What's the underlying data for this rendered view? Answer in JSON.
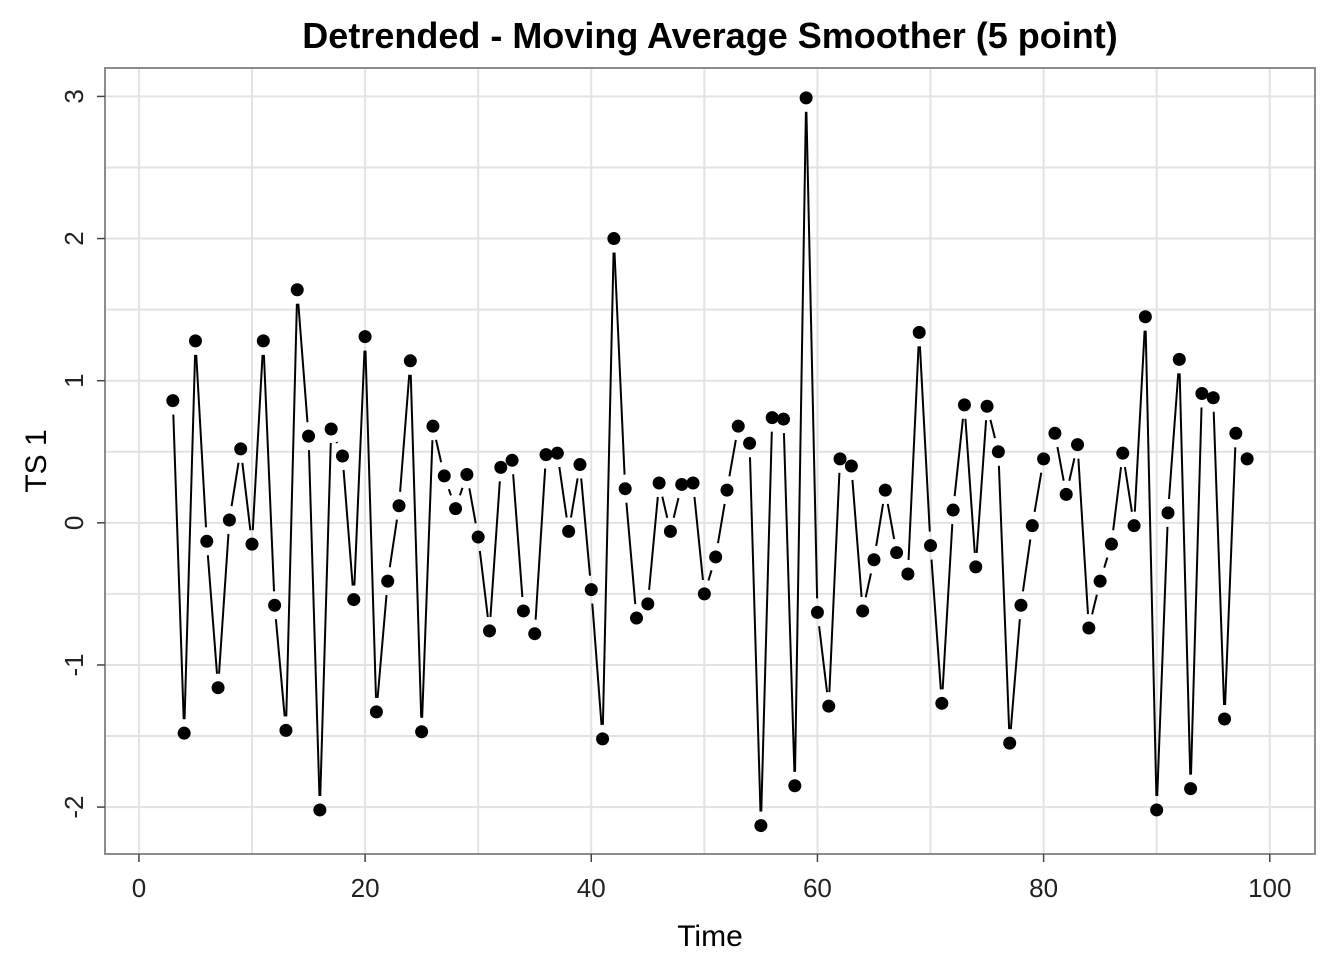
{
  "chart_data": {
    "type": "line",
    "title": "Detrended - Moving Average Smoother (5 point)",
    "xlabel": "Time",
    "ylabel": "TS 1",
    "xlim": [
      -3,
      104
    ],
    "ylim": [
      -2.33,
      3.2
    ],
    "x_ticks": [
      0,
      20,
      40,
      60,
      80,
      100
    ],
    "x_tick_labels": [
      "0",
      "20",
      "40",
      "60",
      "80",
      "100"
    ],
    "y_ticks": [
      -2,
      -1,
      0,
      1,
      2,
      3
    ],
    "y_tick_labels": [
      "-2",
      "-1",
      "0",
      "1",
      "2",
      "3"
    ],
    "grid": true,
    "legend": "none",
    "x": [
      3,
      4,
      5,
      6,
      7,
      8,
      9,
      10,
      11,
      12,
      13,
      14,
      15,
      16,
      17,
      18,
      19,
      20,
      21,
      22,
      23,
      24,
      25,
      26,
      27,
      28,
      29,
      30,
      31,
      32,
      33,
      34,
      35,
      36,
      37,
      38,
      39,
      40,
      41,
      42,
      43,
      44,
      45,
      46,
      47,
      48,
      49,
      50,
      51,
      52,
      53,
      54,
      55,
      56,
      57,
      58,
      59,
      60,
      61,
      62,
      63,
      64,
      65,
      66,
      67,
      68,
      69,
      70,
      71,
      72,
      73,
      74,
      75,
      76,
      77,
      78,
      79,
      80,
      81,
      82,
      83,
      84,
      85,
      86,
      87,
      88,
      89,
      90,
      91,
      92,
      93,
      94,
      95,
      96,
      97,
      98
    ],
    "y": [
      0.86,
      -1.48,
      1.28,
      -0.13,
      -1.16,
      0.02,
      0.52,
      -0.15,
      1.28,
      -0.58,
      -1.46,
      1.64,
      0.61,
      -2.02,
      0.66,
      0.47,
      -0.54,
      1.31,
      -1.33,
      -0.41,
      0.12,
      1.14,
      -1.47,
      0.68,
      0.33,
      0.1,
      0.34,
      -0.1,
      -0.76,
      0.39,
      0.44,
      -0.62,
      -0.78,
      0.48,
      0.49,
      -0.06,
      0.41,
      -0.47,
      -1.52,
      2.0,
      0.24,
      -0.67,
      -0.57,
      0.28,
      -0.06,
      0.27,
      0.28,
      -0.5,
      -0.24,
      0.23,
      0.68,
      0.56,
      -2.13,
      0.74,
      0.73,
      -1.85,
      2.99,
      -0.63,
      -1.29,
      0.45,
      0.4,
      -0.62,
      -0.26,
      0.23,
      -0.21,
      -0.36,
      1.34,
      -0.16,
      -1.27,
      0.09,
      0.83,
      -0.31,
      0.82,
      0.5,
      -1.55,
      -0.58,
      -0.02,
      0.45,
      0.63,
      0.2,
      0.55,
      -0.74,
      -0.41,
      -0.15,
      0.49,
      -0.02,
      1.45,
      -2.02,
      0.07,
      1.15,
      -1.87,
      0.91,
      0.88,
      -1.38,
      0.63,
      0.45
    ],
    "colors": {
      "series": "#000000",
      "grid": "#e3e3e3",
      "border": "#8c8c8c"
    }
  }
}
